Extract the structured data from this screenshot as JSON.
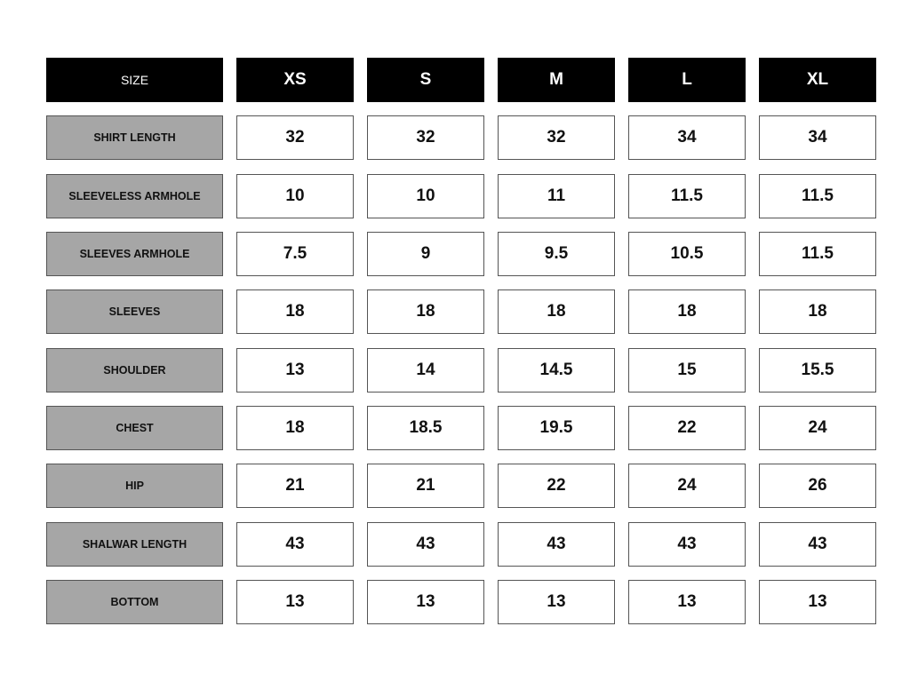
{
  "table": {
    "corner_label": "SIZE",
    "columns": [
      "XS",
      "S",
      "M",
      "L",
      "XL"
    ],
    "rows": [
      {
        "label": "SHIRT LENGTH",
        "values": [
          "32",
          "32",
          "32",
          "34",
          "34"
        ]
      },
      {
        "label": "SLEEVELESS ARMHOLE",
        "values": [
          "10",
          "10",
          "11",
          "11.5",
          "11.5"
        ]
      },
      {
        "label": "SLEEVES ARMHOLE",
        "values": [
          "7.5",
          "9",
          "9.5",
          "10.5",
          "11.5"
        ]
      },
      {
        "label": "SLEEVES",
        "values": [
          "18",
          "18",
          "18",
          "18",
          "18"
        ]
      },
      {
        "label": "SHOULDER",
        "values": [
          "13",
          "14",
          "14.5",
          "15",
          "15.5"
        ]
      },
      {
        "label": "CHEST",
        "values": [
          "18",
          "18.5",
          "19.5",
          "22",
          "24"
        ]
      },
      {
        "label": "HIP",
        "values": [
          "21",
          "21",
          "22",
          "24",
          "26"
        ]
      },
      {
        "label": "SHALWAR LENGTH",
        "values": [
          "43",
          "43",
          "43",
          "43",
          "43"
        ]
      },
      {
        "label": "BOTTOM",
        "values": [
          "13",
          "13",
          "13",
          "13",
          "13"
        ]
      }
    ]
  },
  "colors": {
    "header_bg": "#000000",
    "label_bg": "#a6a6a6",
    "border": "#555555"
  }
}
